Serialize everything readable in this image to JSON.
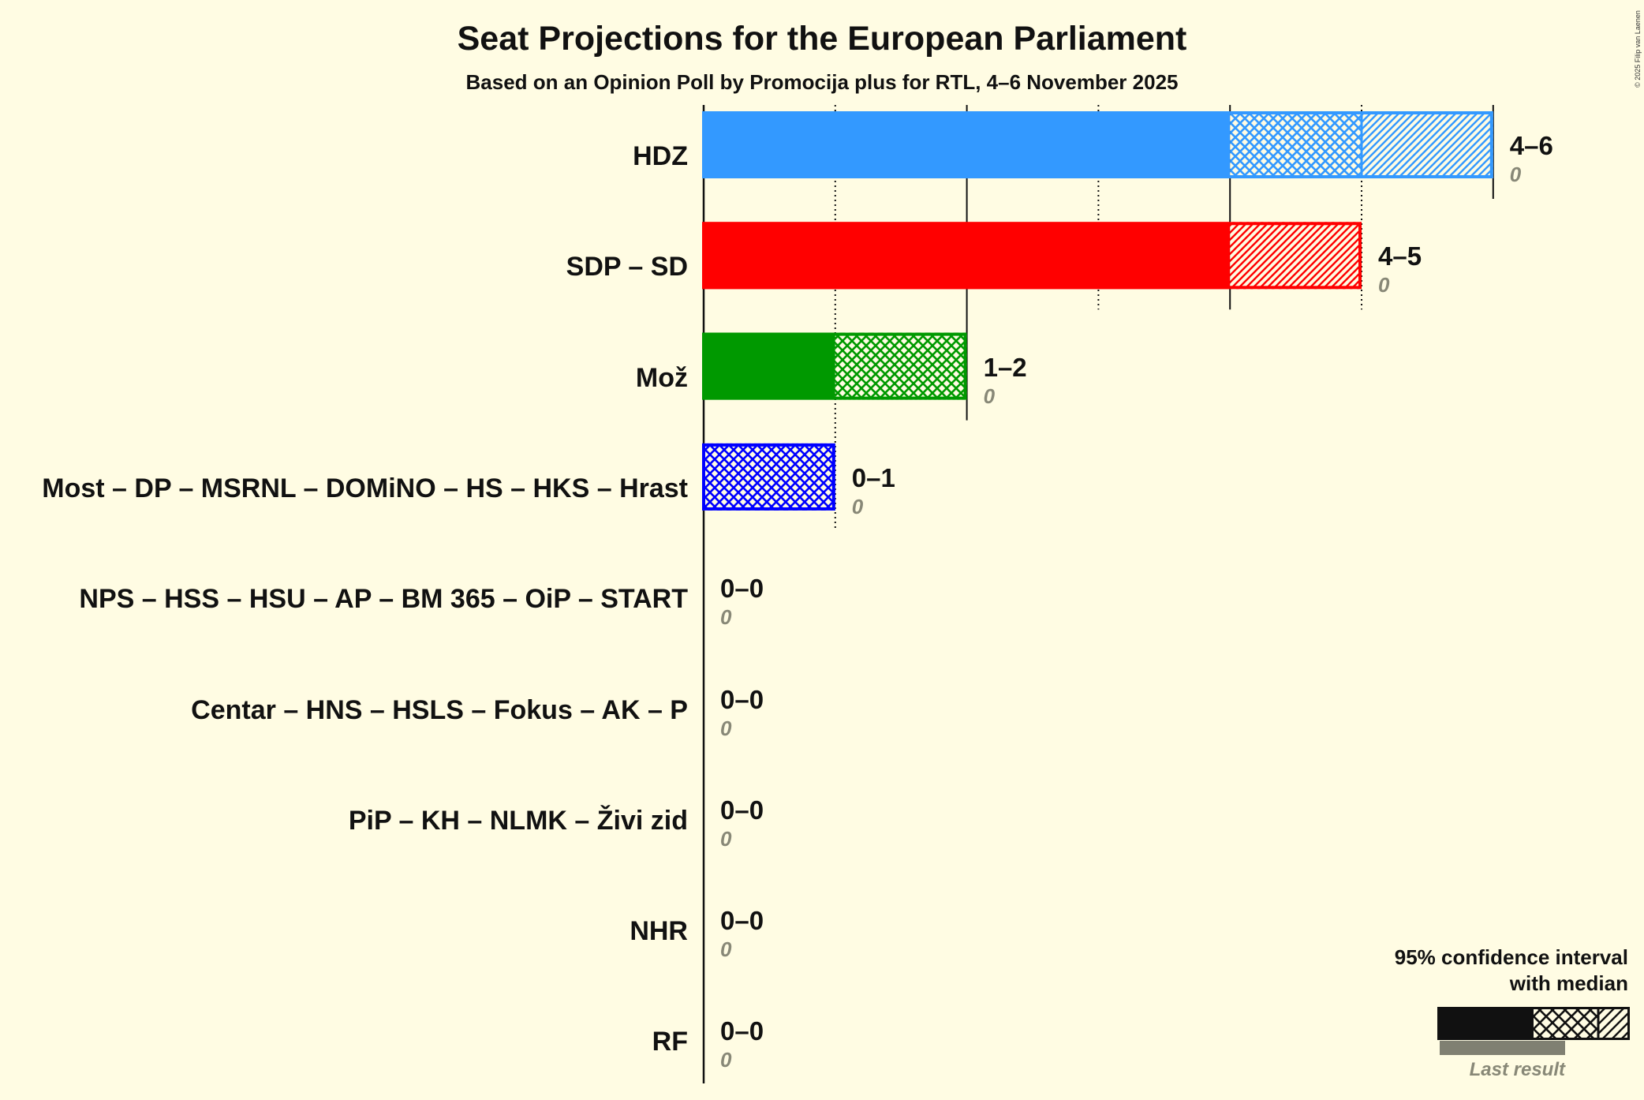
{
  "title": "Seat Projections for the European Parliament",
  "subtitle": "Based on an Opinion Poll by Promocija plus for RTL, 4–6 November 2025",
  "copyright": "© 2025 Filip van Laenen",
  "colors": {
    "background": "#FFFCE3",
    "text": "#111111",
    "last_result_bar": "#808072",
    "last_result_text": "#888877"
  },
  "legend": {
    "line1": "95% confidence interval",
    "line2": "with median",
    "last_result_label": "Last result",
    "color": "#111111"
  },
  "chart_data": {
    "type": "bar",
    "orientation": "horizontal",
    "title": "Seat Projections for the European Parliament",
    "subtitle": "Based on an Opinion Poll by Promocija plus for RTL, 4–6 November 2025",
    "xlabel": "",
    "ylabel": "",
    "xlim": [
      0,
      6
    ],
    "xticks": [
      0,
      1,
      2,
      3,
      4,
      5,
      6
    ],
    "grid": true,
    "legend_position": "bottom-right",
    "categories": [
      "HDZ",
      "SDP – SD",
      "Mož",
      "Most – DP – MSRNL – DOMiNO – HS – HKS – Hrast",
      "NPS – HSS – HSU – AP – BM 365 – OiP – START",
      "Centar – HNS – HSLS – Fokus – AK – P",
      "PiP – KH – NLMK – Živi zid",
      "NHR",
      "RF"
    ],
    "colors": [
      "#3399FF",
      "#FF0000",
      "#009900",
      "#0000FF",
      null,
      null,
      null,
      null,
      null
    ],
    "series": [
      {
        "name": "95% CI lower bound",
        "values": [
          4,
          4,
          1,
          0,
          0,
          0,
          0,
          0,
          0
        ]
      },
      {
        "name": "Median",
        "values": [
          5,
          4,
          2,
          1,
          0,
          0,
          0,
          0,
          0
        ]
      },
      {
        "name": "95% CI upper bound",
        "values": [
          6,
          5,
          2,
          1,
          0,
          0,
          0,
          0,
          0
        ]
      },
      {
        "name": "Last result",
        "values": [
          0,
          0,
          0,
          0,
          0,
          0,
          0,
          0,
          0
        ]
      }
    ],
    "range_labels": [
      "4–6",
      "4–5",
      "1–2",
      "0–1",
      "0–0",
      "0–0",
      "0–0",
      "0–0",
      "0–0"
    ],
    "annotations": [
      "95% confidence interval with median",
      "Last result"
    ]
  }
}
